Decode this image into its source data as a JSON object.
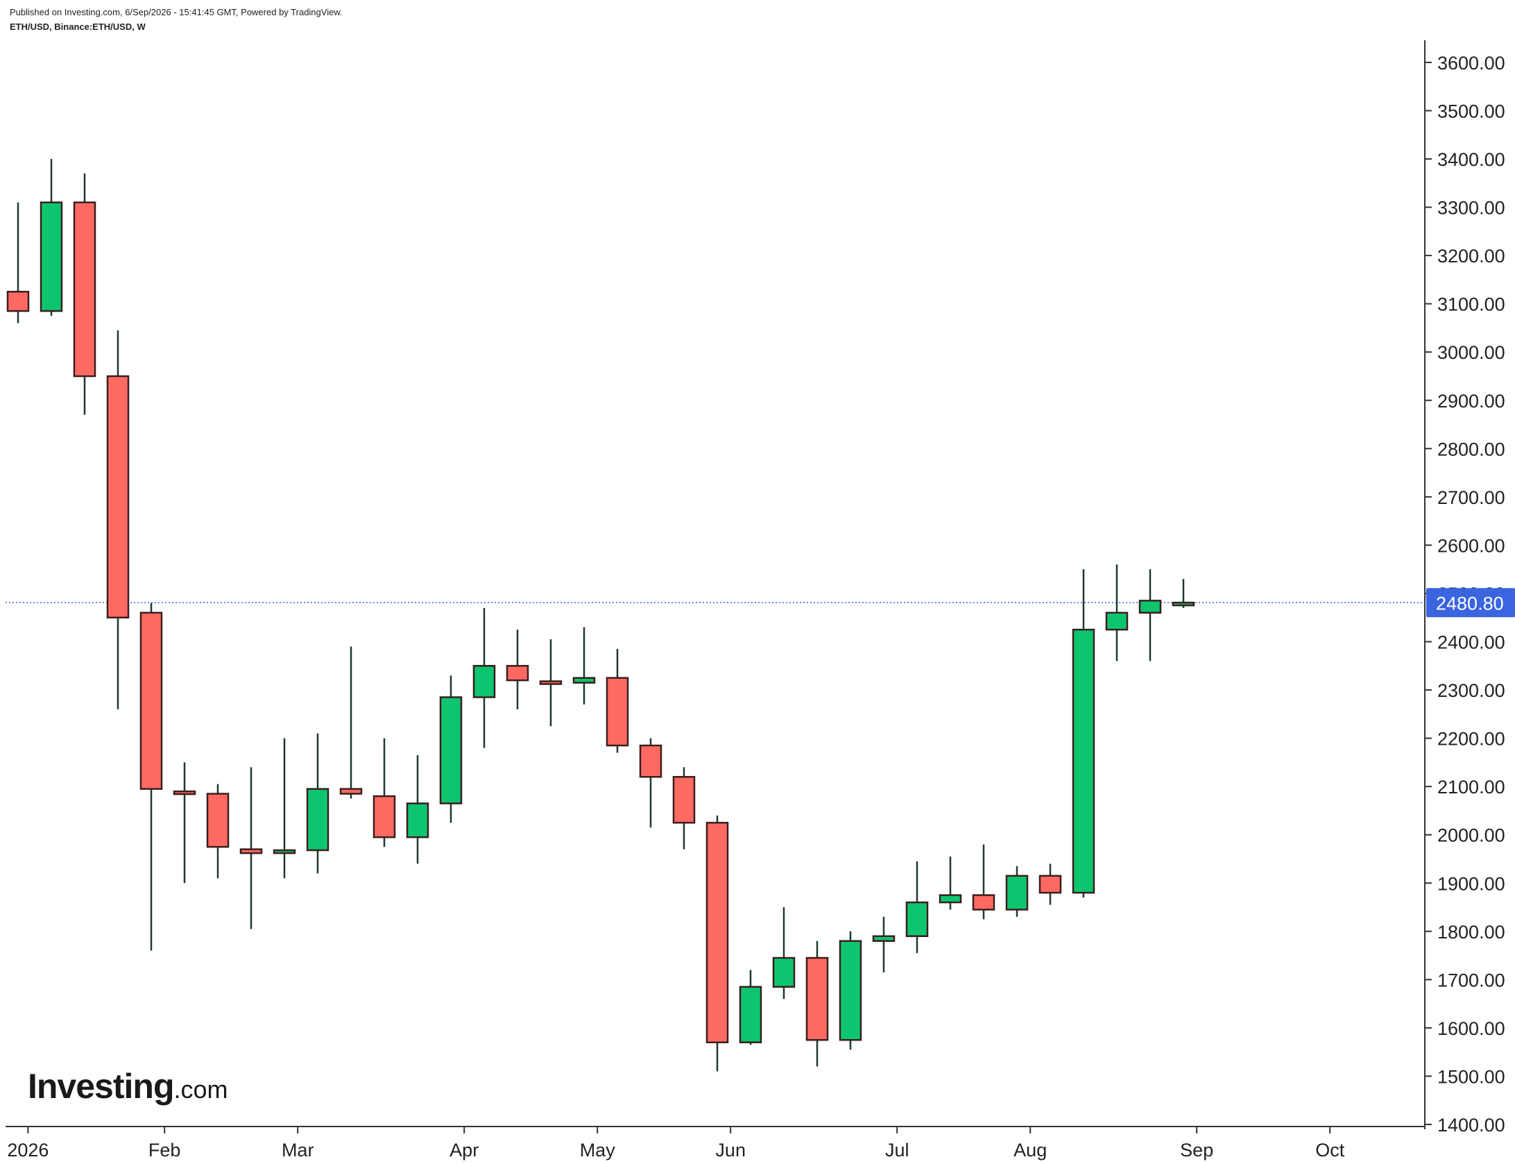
{
  "header": {
    "published": "Published on Investing.com, 6/Sep/2026 - 15:41:45 GMT, Powered by TradingView.",
    "symbol": "ETH/USD, Binance:ETH/USD, W"
  },
  "logo": {
    "main": "Investing",
    "suffix": ".com"
  },
  "colors": {
    "up": "#0cc56e",
    "down": "#fe6a61",
    "wick": "#1d3a2c",
    "price_tag": "#3b64e0",
    "axis": "#333333"
  },
  "chart_data": {
    "type": "candlestick",
    "interval": "W",
    "ylim": [
      1400,
      3620
    ],
    "y_ticks": [
      "1400.00",
      "1500.00",
      "1600.00",
      "1700.00",
      "1800.00",
      "1900.00",
      "2000.00",
      "2100.00",
      "2200.00",
      "2300.00",
      "2400.00",
      "2500.00",
      "2600.00",
      "2700.00",
      "2800.00",
      "2900.00",
      "3000.00",
      "3100.00",
      "3200.00",
      "3300.00",
      "3400.00",
      "3500.00",
      "3600.00"
    ],
    "x_labels": [
      {
        "label": "2026",
        "week": 0.3
      },
      {
        "label": "Feb",
        "week": 4.4
      },
      {
        "label": "Mar",
        "week": 8.4
      },
      {
        "label": "Apr",
        "week": 13.4
      },
      {
        "label": "May",
        "week": 17.4
      },
      {
        "label": "Jun",
        "week": 21.4
      },
      {
        "label": "Jul",
        "week": 26.4
      },
      {
        "label": "Aug",
        "week": 30.4
      },
      {
        "label": "Sep",
        "week": 35.4
      },
      {
        "label": "Oct",
        "week": 39.4
      }
    ],
    "last_price": "2480.80",
    "last_price_value": 2480.8,
    "candles": [
      {
        "o": 3125,
        "h": 3310,
        "l": 3060,
        "c": 3085
      },
      {
        "o": 3085,
        "h": 3400,
        "l": 3075,
        "c": 3310
      },
      {
        "o": 3310,
        "h": 3370,
        "l": 2870,
        "c": 2950
      },
      {
        "o": 2950,
        "h": 3045,
        "l": 2260,
        "c": 2450
      },
      {
        "o": 2460,
        "h": 2480,
        "l": 1760,
        "c": 2095
      },
      {
        "o": 2090,
        "h": 2150,
        "l": 1900,
        "c": 2085
      },
      {
        "o": 2085,
        "h": 2105,
        "l": 1910,
        "c": 1975
      },
      {
        "o": 1970,
        "h": 2140,
        "l": 1805,
        "c": 1962
      },
      {
        "o": 1962,
        "h": 2200,
        "l": 1910,
        "c": 1968
      },
      {
        "o": 1968,
        "h": 2210,
        "l": 1920,
        "c": 2095
      },
      {
        "o": 2095,
        "h": 2390,
        "l": 2075,
        "c": 2085
      },
      {
        "o": 2080,
        "h": 2200,
        "l": 1975,
        "c": 1995
      },
      {
        "o": 1995,
        "h": 2165,
        "l": 1940,
        "c": 2065
      },
      {
        "o": 2065,
        "h": 2330,
        "l": 2025,
        "c": 2285
      },
      {
        "o": 2285,
        "h": 2470,
        "l": 2180,
        "c": 2350
      },
      {
        "o": 2350,
        "h": 2425,
        "l": 2260,
        "c": 2320
      },
      {
        "o": 2318,
        "h": 2405,
        "l": 2225,
        "c": 2315
      },
      {
        "o": 2315,
        "h": 2430,
        "l": 2270,
        "c": 2325
      },
      {
        "o": 2325,
        "h": 2385,
        "l": 2170,
        "c": 2185
      },
      {
        "o": 2185,
        "h": 2200,
        "l": 2015,
        "c": 2120
      },
      {
        "o": 2120,
        "h": 2140,
        "l": 1970,
        "c": 2025
      },
      {
        "o": 2025,
        "h": 2040,
        "l": 1510,
        "c": 1570
      },
      {
        "o": 1570,
        "h": 1720,
        "l": 1565,
        "c": 1685
      },
      {
        "o": 1685,
        "h": 1850,
        "l": 1660,
        "c": 1745
      },
      {
        "o": 1745,
        "h": 1780,
        "l": 1520,
        "c": 1575
      },
      {
        "o": 1575,
        "h": 1800,
        "l": 1555,
        "c": 1780
      },
      {
        "o": 1780,
        "h": 1830,
        "l": 1715,
        "c": 1790
      },
      {
        "o": 1790,
        "h": 1945,
        "l": 1755,
        "c": 1860
      },
      {
        "o": 1860,
        "h": 1955,
        "l": 1845,
        "c": 1875
      },
      {
        "o": 1875,
        "h": 1980,
        "l": 1825,
        "c": 1845
      },
      {
        "o": 1845,
        "h": 1935,
        "l": 1830,
        "c": 1915
      },
      {
        "o": 1915,
        "h": 1940,
        "l": 1855,
        "c": 1880
      },
      {
        "o": 1880,
        "h": 2550,
        "l": 1870,
        "c": 2425
      },
      {
        "o": 2425,
        "h": 2560,
        "l": 2360,
        "c": 2460
      },
      {
        "o": 2460,
        "h": 2550,
        "l": 2360,
        "c": 2485
      },
      {
        "o": 2478,
        "h": 2530,
        "l": 2470,
        "c": 2481
      }
    ]
  }
}
